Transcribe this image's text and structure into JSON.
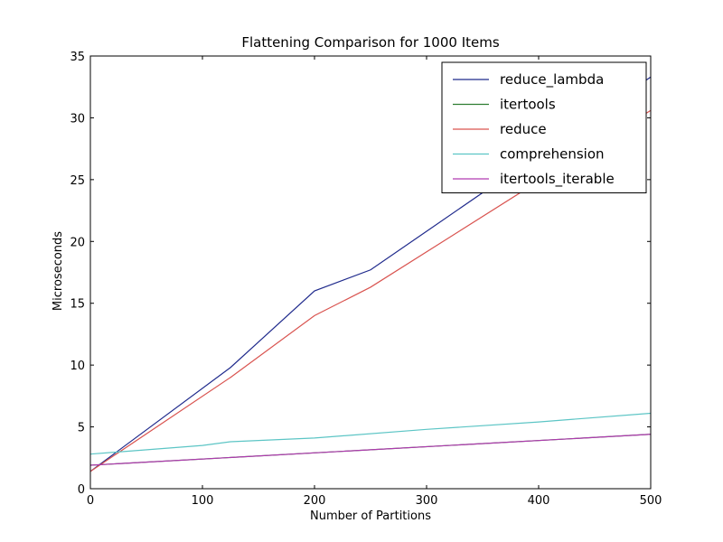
{
  "chart_data": {
    "type": "line",
    "title": "Flattening Comparison for 1000 Items",
    "xlabel": "Number of Partitions",
    "ylabel": "Microseconds",
    "xlim": [
      0,
      500
    ],
    "ylim": [
      0,
      35
    ],
    "xticks": [
      0,
      100,
      200,
      300,
      400,
      500
    ],
    "yticks": [
      0,
      5,
      10,
      15,
      20,
      25,
      30,
      35
    ],
    "grid": false,
    "legend_position": "top-right",
    "series": [
      {
        "name": "reduce_lambda",
        "color": "#1f2a8c",
        "x": [
          0,
          125,
          200,
          250,
          500
        ],
        "y": [
          1.4,
          9.8,
          16.0,
          17.7,
          33.3
        ]
      },
      {
        "name": "itertools",
        "color": "#2e7d32",
        "x": [
          0,
          500
        ],
        "y": [
          1.9,
          4.4
        ]
      },
      {
        "name": "reduce",
        "color": "#d9534f",
        "x": [
          0,
          125,
          200,
          250,
          500
        ],
        "y": [
          1.4,
          9.0,
          14.0,
          16.3,
          30.6
        ]
      },
      {
        "name": "comprehension",
        "color": "#5cc5c5",
        "x": [
          0,
          100,
          125,
          200,
          300,
          400,
          500
        ],
        "y": [
          2.8,
          3.5,
          3.8,
          4.1,
          4.8,
          5.4,
          6.1
        ]
      },
      {
        "name": "itertools_iterable",
        "color": "#b03ab0",
        "x": [
          0,
          500
        ],
        "y": [
          1.9,
          4.4
        ]
      }
    ]
  }
}
